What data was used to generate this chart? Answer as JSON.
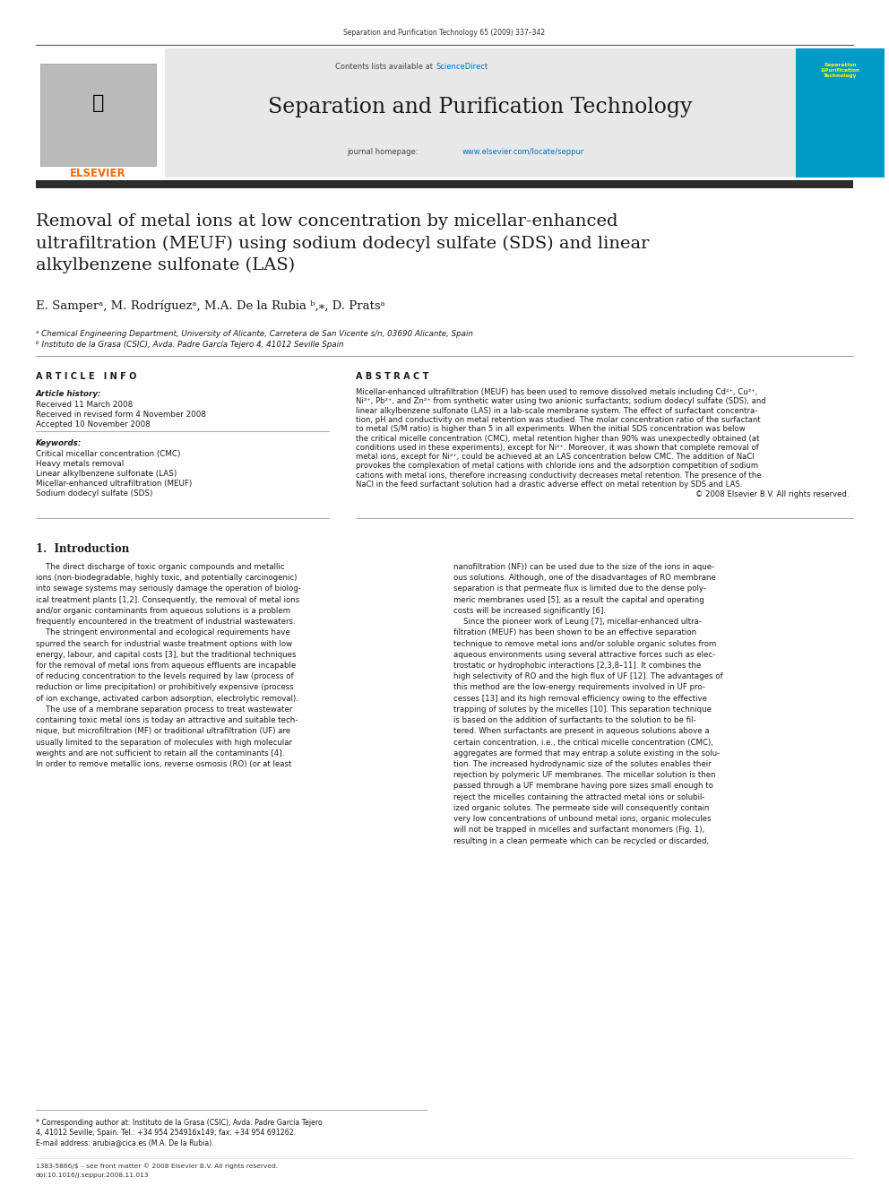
{
  "page_width": 9.92,
  "page_height": 13.23,
  "background_color": "#ffffff",
  "journal_ref": "Separation and Purification Technology 65 (2009) 337–342",
  "header_bg": "#e8e8e8",
  "journal_name": "Separation and Purification Technology",
  "sciencedirect_color": "#0070c0",
  "homepage_color": "#0070c0",
  "paper_title": "Removal of metal ions at low concentration by micellar-enhanced\nultrafiltration (MEUF) using sodium dodecyl sulfate (SDS) and linear\nalkylbenzene sulfonate (LAS)",
  "authors": "E. Samperᵃ, M. Rodríguezᵃ, M.A. De la Rubia ᵇ,⁎, D. Pratsᵃ",
  "affiliation_a": "ᵃ Chemical Engineering Department, University of Alicante, Carretera de San Vicente s/n, 03690 Alicante, Spain",
  "affiliation_b": "ᵇ Instituto de la Grasa (CSIC), Avda. Padre García Tejero 4, 41012 Seville Spain",
  "article_info_title": "A R T I C L E   I N F O",
  "abstract_title": "A B S T R A C T",
  "article_history_label": "Article history:",
  "received_1": "Received 11 March 2008",
  "received_2": "Received in revised form 4 November 2008",
  "accepted": "Accepted 10 November 2008",
  "keywords_label": "Keywords:",
  "keywords": [
    "Critical micellar concentration (CMC)",
    "Heavy metals removal",
    "Linear alkylbenzene sulfonate (LAS)",
    "Micellar-enhanced ultrafiltration (MEUF)",
    "Sodium dodecyl sulfate (SDS)"
  ],
  "copyright": "© 2008 Elsevier B.V. All rights reserved.",
  "intro_heading": "1.  Introduction",
  "footnote_line1": "* Corresponding author at: Instituto de la Grasa (CSIC), Avda. Padre García Tejero",
  "footnote_line2": "4, 41012 Seville, Spain. Tel.: +34 954 254916x149; fax: +34 954 691262.",
  "footnote_email": "E-mail address: arubia@cica.es (M.A. De la Rubia).",
  "footer_issn": "1383-5866/$ – see front matter © 2008 Elsevier B.V. All rights reserved.",
  "footer_doi": "doi:10.1016/j.seppur.2008.11.013",
  "header_box_color": "#009ac7",
  "elsevier_orange": "#ff6600"
}
